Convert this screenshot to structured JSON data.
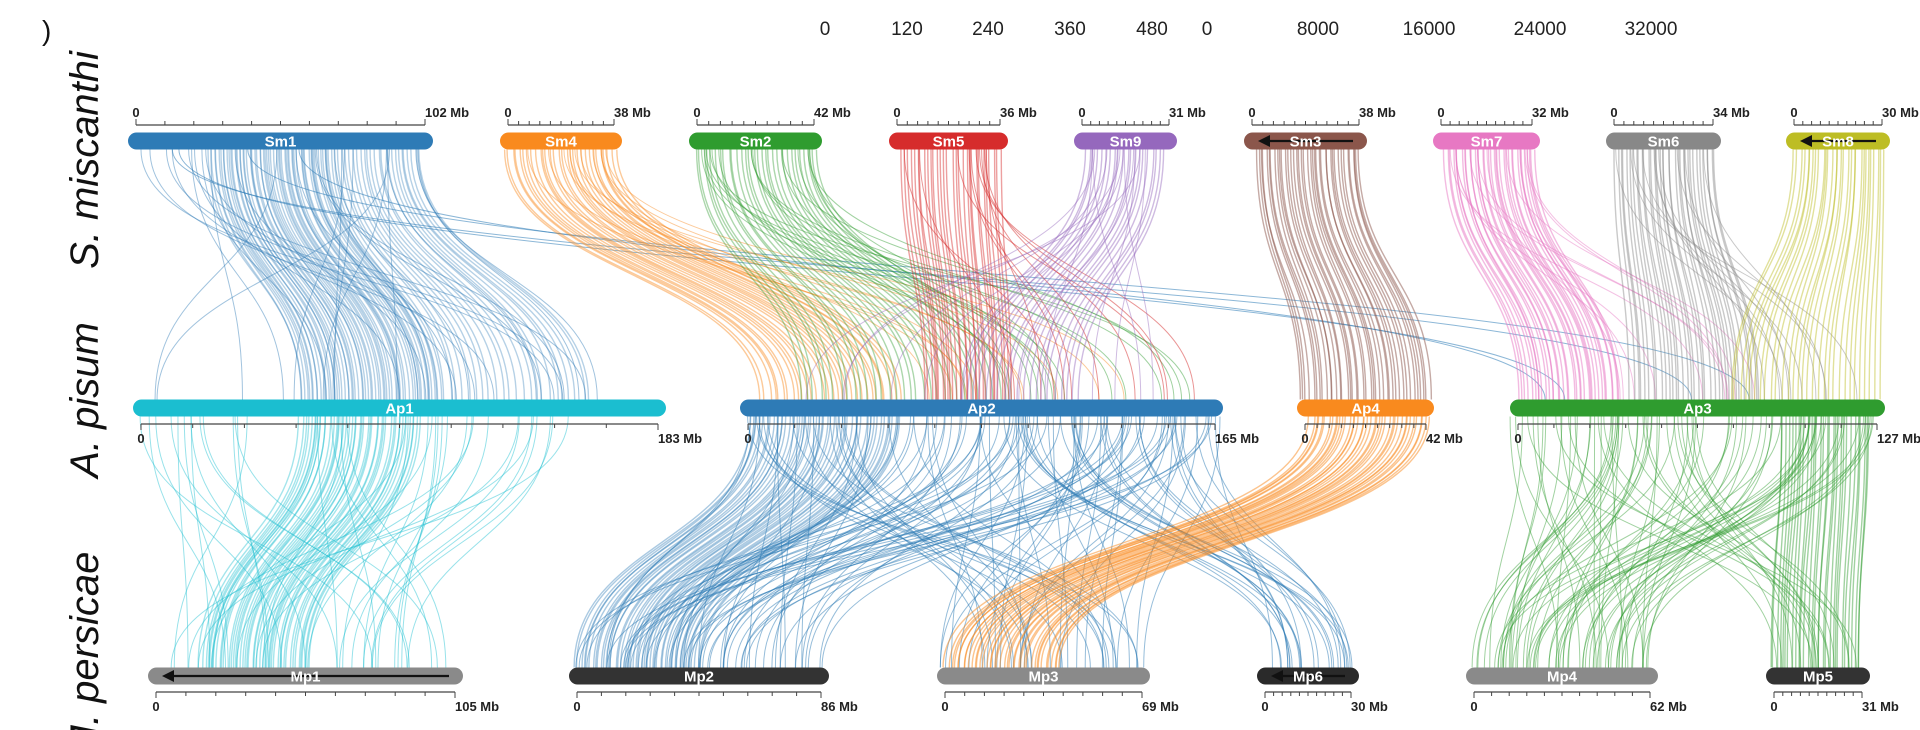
{
  "top_scales": [
    {
      "values": [
        "0",
        "120",
        "240",
        "360",
        "480"
      ]
    },
    {
      "values": [
        "0",
        "8000",
        "16000",
        "24000",
        "32000"
      ]
    }
  ],
  "species": {
    "sm": "S. miscanthi",
    "ap": "A. pisum",
    "mp": "M. persicae",
    "panel_letter": ")"
  },
  "top_chromosomes": [
    {
      "id": "Sm1",
      "color": "#2e7bb6",
      "start": "0",
      "end": "102 Mb",
      "arrow": false
    },
    {
      "id": "Sm4",
      "color": "#f98a1e",
      "start": "0",
      "end": "38 Mb",
      "arrow": false
    },
    {
      "id": "Sm2",
      "color": "#2f9c2f",
      "start": "0",
      "end": "42 Mb",
      "arrow": false
    },
    {
      "id": "Sm5",
      "color": "#d62c2c",
      "start": "0",
      "end": "36 Mb",
      "arrow": false
    },
    {
      "id": "Sm9",
      "color": "#9568bd",
      "start": "0",
      "end": "31 Mb",
      "arrow": false
    },
    {
      "id": "Sm3",
      "color": "#8b564b",
      "start": "0",
      "end": "38 Mb",
      "arrow": true
    },
    {
      "id": "Sm7",
      "color": "#e778c3",
      "start": "0",
      "end": "32 Mb",
      "arrow": false
    },
    {
      "id": "Sm6",
      "color": "#888888",
      "start": "0",
      "end": "34 Mb",
      "arrow": false
    },
    {
      "id": "Sm8",
      "color": "#bdbd24",
      "start": "0",
      "end": "30 Mb",
      "arrow": true
    }
  ],
  "mid_chromosomes": [
    {
      "id": "Ap1",
      "color": "#1bbed0",
      "start": "0",
      "end": "183 Mb"
    },
    {
      "id": "Ap2",
      "color": "#2e7bb6",
      "start": "0",
      "end": "165 Mb"
    },
    {
      "id": "Ap4",
      "color": "#f98a1e",
      "start": "0",
      "end": "42 Mb"
    },
    {
      "id": "Ap3",
      "color": "#2f9c2f",
      "start": "0",
      "end": "127 Mb"
    }
  ],
  "bottom_chromosomes": [
    {
      "id": "Mp1",
      "color": "#8a8a8a",
      "start": "0",
      "end": "105 Mb",
      "arrow": true
    },
    {
      "id": "Mp2",
      "color": "#333333",
      "start": "0",
      "end": "86 Mb",
      "arrow": false
    },
    {
      "id": "Mp3",
      "color": "#8a8a8a",
      "start": "0",
      "end": "69 Mb",
      "arrow": false
    },
    {
      "id": "Mp6",
      "color": "#2a2a2a",
      "start": "0",
      "end": "30 Mb",
      "arrow": true
    },
    {
      "id": "Mp4",
      "color": "#8a8a8a",
      "start": "0",
      "end": "62 Mb",
      "arrow": false
    },
    {
      "id": "Mp5",
      "color": "#333333",
      "start": "0",
      "end": "31 Mb",
      "arrow": false
    }
  ]
}
